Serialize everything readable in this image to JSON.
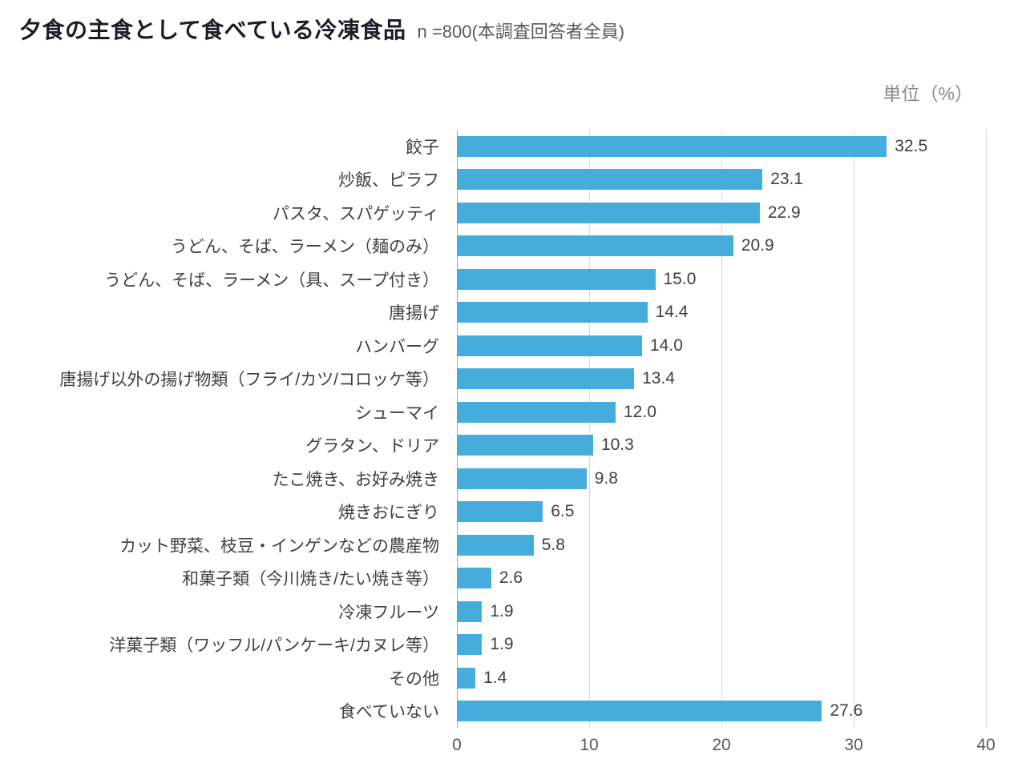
{
  "header": {
    "title": "夕食の主食として食べている冷凍食品",
    "subtitle": "n =800(本調査回答者全員)"
  },
  "unit_label": "単位（%）",
  "chart_data": {
    "type": "bar",
    "orientation": "horizontal",
    "title": "夕食の主食として食べている冷凍食品",
    "sample_note": "n =800(本調査回答者全員)",
    "unit": "単位（%）",
    "categories": [
      "餃子",
      "炒飯、ピラフ",
      "パスタ、スパゲッティ",
      "うどん、そば、ラーメン（麺のみ）",
      "うどん、そば、ラーメン（具、スープ付き）",
      "唐揚げ",
      "ハンバーグ",
      "唐揚げ以外の揚げ物類（フライ/カツ/コロッケ等）",
      "シューマイ",
      "グラタン、ドリア",
      "たこ焼き、お好み焼き",
      "焼きおにぎり",
      "カット野菜、枝豆・インゲンなどの農産物",
      "和菓子類（今川焼き/たい焼き等）",
      "冷凍フルーツ",
      "洋菓子類（ワッフル/パンケーキ/カヌレ等）",
      "その他",
      "食べていない"
    ],
    "values": [
      32.5,
      23.1,
      22.9,
      20.9,
      15.0,
      14.4,
      14.0,
      13.4,
      12.0,
      10.3,
      9.8,
      6.5,
      5.8,
      2.6,
      1.9,
      1.9,
      1.4,
      27.6
    ],
    "xlim": [
      0,
      40
    ],
    "xticks": [
      0,
      10,
      20,
      30,
      40
    ],
    "bar_color": "#46acdb",
    "grid": true,
    "legend": "none"
  }
}
